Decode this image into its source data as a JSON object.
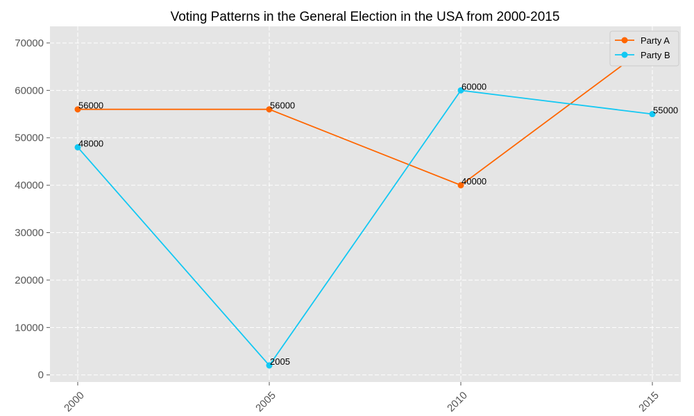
{
  "chart_data": {
    "type": "line",
    "title": "Voting Patterns in the General Election in the USA from 2000-2015",
    "xlabel": "",
    "ylabel": "",
    "categories": [
      "2000",
      "2005",
      "2010",
      "2015"
    ],
    "ylim": [
      -1500,
      73500
    ],
    "yticks": [
      0,
      10000,
      20000,
      30000,
      40000,
      50000,
      60000,
      70000
    ],
    "grid": true,
    "legend_position": "top-right",
    "series": [
      {
        "name": "Party A",
        "color": "#ff6600",
        "values": [
          56000,
          56000,
          40000,
          70000
        ],
        "labels": [
          "56000",
          "56000",
          "40000",
          "70000"
        ]
      },
      {
        "name": "Party B",
        "color": "#12c8f3",
        "values": [
          48000,
          2005,
          60000,
          55000
        ],
        "labels": [
          "48000",
          "2005",
          "60000",
          "55000"
        ]
      }
    ],
    "colors": {
      "plot_background": "#e5e5e5",
      "grid": "#ffffff"
    }
  }
}
